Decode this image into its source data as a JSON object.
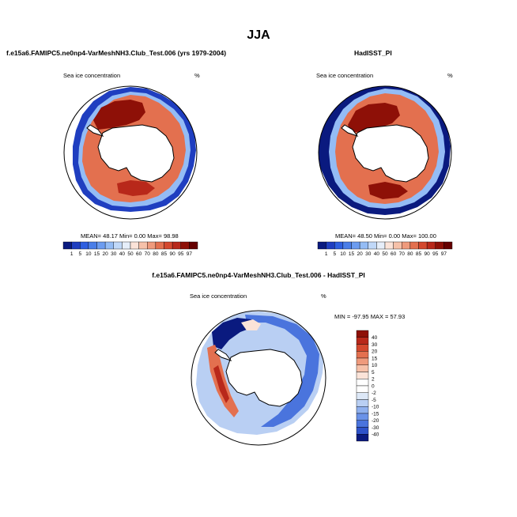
{
  "main_title": "JJA",
  "chart_data": [
    {
      "type": "heatmap",
      "title": "f.e15a6.FAMIPC5.ne0np4-VarMeshNH3.Club_Test.006 (yrs 1979-2004)",
      "variable_label": "Sea ice concentration",
      "units": "%",
      "stats": {
        "mean_label": "MEAN=",
        "mean": "48.17",
        "min_label": "Min=",
        "min": "0.00",
        "max_label": "Max=",
        "max": "98.98"
      },
      "colorbar_levels": [
        "1",
        "5",
        "10",
        "15",
        "20",
        "30",
        "40",
        "50",
        "60",
        "70",
        "80",
        "85",
        "90",
        "95",
        "97"
      ],
      "colorbar_colors": [
        "#0a1a7f",
        "#1f3ec0",
        "#2e5fe0",
        "#4a7ee8",
        "#6c9cf0",
        "#94bcf5",
        "#c0d8f8",
        "#e6eef9",
        "#fbe3d8",
        "#f6c1a9",
        "#ef9a7c",
        "#e3704f",
        "#d4482e",
        "#b8281a",
        "#8e1007",
        "#650000"
      ],
      "projection": "south-polar-stereographic"
    },
    {
      "type": "heatmap",
      "title": "HadISST_PI",
      "variable_label": "Sea ice concentration",
      "units": "%",
      "stats": {
        "mean_label": "MEAN=",
        "mean": "48.50",
        "min_label": "Min=",
        "min": "0.00",
        "max_label": "Max=",
        "max": "100.00"
      },
      "colorbar_levels": [
        "1",
        "5",
        "10",
        "15",
        "20",
        "30",
        "40",
        "50",
        "60",
        "70",
        "80",
        "85",
        "90",
        "95",
        "97"
      ],
      "colorbar_colors": [
        "#0a1a7f",
        "#1f3ec0",
        "#2e5fe0",
        "#4a7ee8",
        "#6c9cf0",
        "#94bcf5",
        "#c0d8f8",
        "#e6eef9",
        "#fbe3d8",
        "#f6c1a9",
        "#ef9a7c",
        "#e3704f",
        "#d4482e",
        "#b8281a",
        "#8e1007",
        "#650000"
      ],
      "projection": "south-polar-stereographic"
    },
    {
      "type": "heatmap",
      "title": "f.e15a6.FAMIPC5.ne0np4-VarMeshNH3.Club_Test.006 - HadISST_PI",
      "variable_label": "Sea ice concentration",
      "units": "%",
      "stats": {
        "min_label": "MIN =",
        "min": "-97.95",
        "max_label": "MAX =",
        "max": "57.93"
      },
      "colorbar_levels": [
        "40",
        "30",
        "20",
        "15",
        "10",
        "5",
        "2",
        "0",
        "-2",
        "-5",
        "-10",
        "-15",
        "-20",
        "-30",
        "-40"
      ],
      "colorbar_colors": [
        "#8e1007",
        "#b8281a",
        "#d4482e",
        "#e3704f",
        "#ef9a7c",
        "#f6c1a9",
        "#fbe3d8",
        "#ffffff",
        "#ffffff",
        "#dde8f7",
        "#b9cff3",
        "#8fb0ee",
        "#6a92e8",
        "#4a74dd",
        "#2e52c9",
        "#0a1a7f"
      ],
      "projection": "south-polar-stereographic"
    }
  ]
}
